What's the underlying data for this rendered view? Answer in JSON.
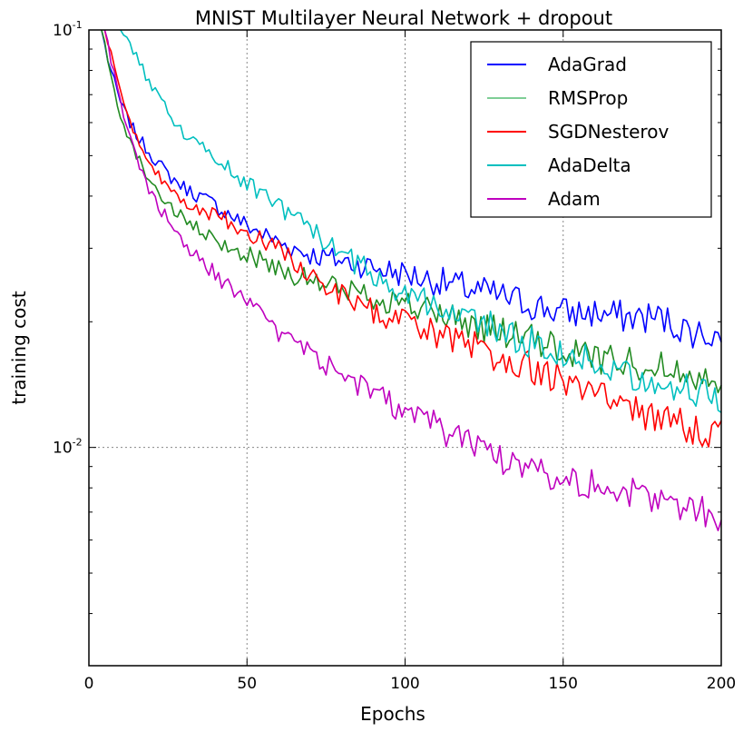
{
  "chart_data": {
    "type": "line",
    "title": "MNIST Multilayer Neural Network + dropout",
    "xlabel": "Epochs",
    "ylabel": "training cost",
    "xlim": [
      0,
      200
    ],
    "ylim": [
      0.003,
      0.1
    ],
    "yscale": "log",
    "xticks": [
      0,
      50,
      100,
      150,
      200
    ],
    "yticks": [
      {
        "value": 0.1,
        "base": "10",
        "exp": "-1"
      },
      {
        "value": 0.01,
        "base": "10",
        "exp": "-2"
      }
    ],
    "grid": true,
    "legend_position": "top-right",
    "series": [
      {
        "name": "AdaGrad",
        "color": "#0000ff",
        "x": [
          4,
          6,
          8,
          10,
          12,
          15,
          20,
          25,
          30,
          40,
          50,
          60,
          70,
          80,
          90,
          100,
          110,
          120,
          130,
          140,
          150,
          160,
          170,
          180,
          190,
          200
        ],
        "values": [
          0.1,
          0.085,
          0.075,
          0.067,
          0.062,
          0.056,
          0.05,
          0.045,
          0.042,
          0.038,
          0.034,
          0.031,
          0.029,
          0.028,
          0.027,
          0.026,
          0.025,
          0.024,
          0.023,
          0.022,
          0.021,
          0.021,
          0.0205,
          0.0205,
          0.019,
          0.0185
        ]
      },
      {
        "name": "RMSProp",
        "color": "#228b22",
        "x": [
          4,
          6,
          8,
          10,
          12,
          15,
          20,
          25,
          30,
          40,
          50,
          60,
          70,
          80,
          90,
          100,
          110,
          120,
          130,
          140,
          150,
          160,
          170,
          180,
          190,
          200
        ],
        "values": [
          0.1,
          0.084,
          0.072,
          0.063,
          0.057,
          0.05,
          0.043,
          0.038,
          0.035,
          0.031,
          0.029,
          0.027,
          0.025,
          0.024,
          0.023,
          0.022,
          0.021,
          0.0198,
          0.019,
          0.018,
          0.017,
          0.0165,
          0.016,
          0.0157,
          0.0152,
          0.0145
        ]
      },
      {
        "name": "SGDNesterov",
        "color": "#ff0000",
        "x": [
          5,
          7,
          9,
          11,
          13,
          16,
          20,
          25,
          30,
          40,
          50,
          60,
          70,
          80,
          90,
          100,
          110,
          120,
          130,
          140,
          150,
          160,
          170,
          180,
          190,
          200
        ],
        "values": [
          0.1,
          0.088,
          0.076,
          0.067,
          0.06,
          0.052,
          0.046,
          0.042,
          0.039,
          0.036,
          0.033,
          0.03,
          0.026,
          0.023,
          0.021,
          0.02,
          0.0185,
          0.0175,
          0.0165,
          0.0155,
          0.0145,
          0.0135,
          0.0125,
          0.0117,
          0.0112,
          0.0108
        ]
      },
      {
        "name": "AdaDelta",
        "color": "#00bfbf",
        "x": [
          10,
          12,
          15,
          20,
          25,
          30,
          40,
          50,
          60,
          70,
          80,
          90,
          100,
          110,
          120,
          130,
          140,
          150,
          160,
          170,
          180,
          190,
          200
        ],
        "values": [
          0.1,
          0.094,
          0.086,
          0.073,
          0.064,
          0.057,
          0.049,
          0.043,
          0.038,
          0.033,
          0.029,
          0.026,
          0.0235,
          0.022,
          0.0205,
          0.019,
          0.0178,
          0.0168,
          0.016,
          0.0152,
          0.0145,
          0.0138,
          0.013
        ]
      },
      {
        "name": "Adam",
        "color": "#bf00bf",
        "x": [
          5,
          7,
          9,
          11,
          13,
          16,
          20,
          25,
          30,
          40,
          50,
          60,
          70,
          80,
          90,
          100,
          110,
          120,
          130,
          140,
          150,
          160,
          170,
          180,
          190,
          200
        ],
        "values": [
          0.1,
          0.085,
          0.072,
          0.062,
          0.055,
          0.047,
          0.04,
          0.035,
          0.031,
          0.026,
          0.022,
          0.019,
          0.0168,
          0.015,
          0.0135,
          0.0122,
          0.0112,
          0.0103,
          0.0095,
          0.009,
          0.0085,
          0.0081,
          0.0078,
          0.0075,
          0.0072,
          0.0069
        ]
      }
    ]
  }
}
